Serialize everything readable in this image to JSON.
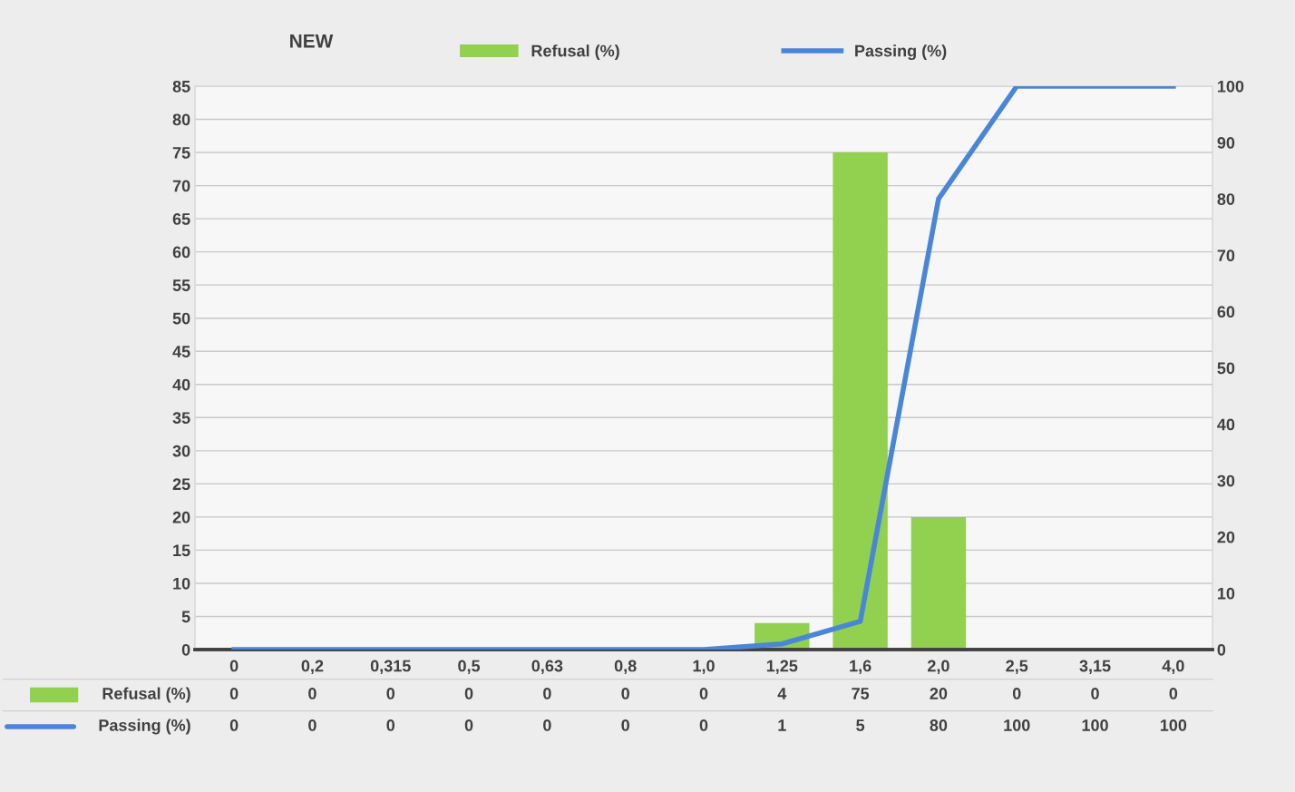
{
  "chart_data": {
    "type": "bar",
    "title": "NEW",
    "categories": [
      "0",
      "0,2",
      "0,315",
      "0,5",
      "0,63",
      "0,8",
      "1,0",
      "1,25",
      "1,6",
      "2,0",
      "2,5",
      "3,15",
      "4,0"
    ],
    "series": [
      {
        "name": "Refusal (%)",
        "color": "#92d050",
        "values": [
          0,
          0,
          0,
          0,
          0,
          0,
          0,
          4,
          75,
          20,
          0,
          0,
          0
        ]
      },
      {
        "name": "Passing (%)",
        "type": "line",
        "axis": "y2",
        "color": "#4a86d8",
        "values": [
          0,
          0,
          0,
          0,
          0,
          0,
          0,
          1,
          5,
          80,
          100,
          100,
          100
        ]
      }
    ],
    "ylim": [
      0,
      85
    ],
    "yticks": [
      0,
      5,
      10,
      15,
      20,
      25,
      30,
      35,
      40,
      45,
      50,
      55,
      60,
      65,
      70,
      75,
      80,
      85
    ],
    "y2lim": [
      0,
      100
    ],
    "y2ticks": [
      0,
      10,
      20,
      30,
      40,
      50,
      60,
      70,
      80,
      90,
      100
    ],
    "grid": "y",
    "legend": "top",
    "data_labels": true,
    "marker": "none",
    "line_style": "solid"
  }
}
